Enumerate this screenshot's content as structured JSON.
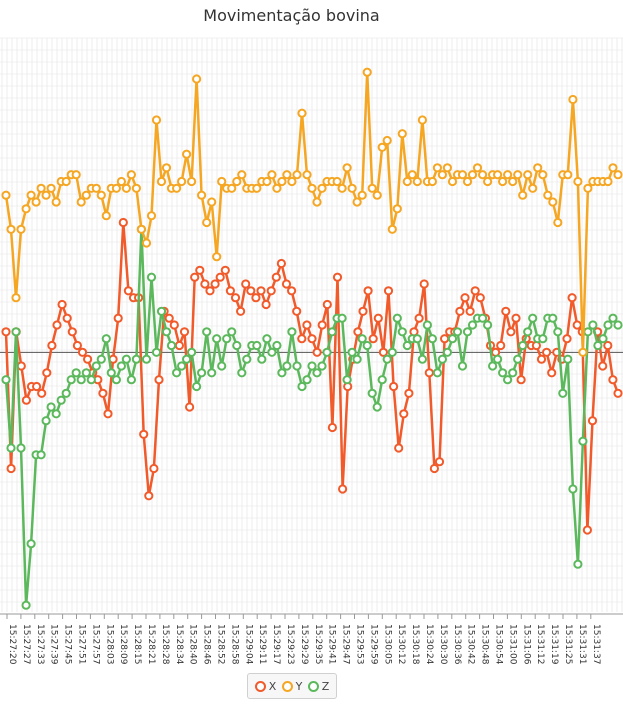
{
  "title": "Movimentação bovina",
  "colors": {
    "x": "#f15a2a",
    "y": "#f5a623",
    "z": "#5cb85c",
    "grid": "#e3e3e3",
    "zero": "#555555"
  },
  "legend": [
    {
      "name": "X",
      "color": "#f15a2a"
    },
    {
      "name": "Y",
      "color": "#f5a623"
    },
    {
      "name": "Z",
      "color": "#5cb85c"
    }
  ],
  "chart_data": {
    "type": "line",
    "title": "Movimentação bovina",
    "xlabel": "",
    "ylabel": "",
    "grid": true,
    "legend_position": "bottom",
    "ylim": [
      -3.8,
      4.6
    ],
    "x_ticks": [
      "15:27:20",
      "15:27:27",
      "15:27:33",
      "15:27:39",
      "15:27:45",
      "15:27:51",
      "15:27:57",
      "15:28:03",
      "15:28:09",
      "15:28:15",
      "15:28:21",
      "15:28:28",
      "15:28:34",
      "15:28:40",
      "15:28:46",
      "15:28:52",
      "15:28:58",
      "15:29:04",
      "15:29:11",
      "15:29:17",
      "15:29:23",
      "15:29:29",
      "15:29:35",
      "15:29:41",
      "15:29:47",
      "15:29:53",
      "15:29:59",
      "15:30:05",
      "15:30:12",
      "15:30:18",
      "15:30:24",
      "15:30:30",
      "15:30:36",
      "15:30:42",
      "15:30:48",
      "15:30:54",
      "15:31:00",
      "15:31:06",
      "15:31:12",
      "15:31:19",
      "15:31:25",
      "15:31:31",
      "15:31:37"
    ],
    "series": [
      {
        "name": "X",
        "values": [
          0.3,
          -1.7,
          0.3,
          -0.2,
          -0.7,
          -0.5,
          -0.5,
          -0.6,
          -0.3,
          0.1,
          0.4,
          0.7,
          0.5,
          0.3,
          0.1,
          0.0,
          -0.1,
          -0.3,
          -0.4,
          -0.6,
          -0.9,
          -0.1,
          0.5,
          1.9,
          0.9,
          0.8,
          0.8,
          -1.2,
          -2.1,
          -1.7,
          -0.4,
          0.6,
          0.5,
          0.4,
          0.1,
          0.3,
          -0.8,
          1.1,
          1.2,
          1.0,
          0.9,
          1.0,
          1.1,
          1.2,
          0.9,
          0.8,
          0.6,
          1.0,
          0.9,
          0.8,
          0.9,
          0.7,
          0.9,
          1.1,
          1.3,
          1.0,
          0.9,
          0.6,
          0.2,
          0.4,
          0.2,
          0.0,
          0.4,
          0.7,
          -1.1,
          1.1,
          -2.0,
          -0.5,
          -0.1,
          0.3,
          0.6,
          0.9,
          0.2,
          0.5,
          0.0,
          0.9,
          -0.5,
          -1.4,
          -0.9,
          -0.6,
          0.3,
          0.5,
          1.0,
          -0.3,
          -1.7,
          -1.6,
          0.2,
          0.3,
          0.3,
          0.6,
          0.8,
          0.6,
          0.9,
          0.8,
          0.5,
          0.1,
          0.0,
          0.1,
          0.6,
          0.3,
          0.5,
          -0.4,
          0.2,
          0.1,
          0.1,
          -0.1,
          0.0,
          -0.3,
          0.0,
          -0.1,
          0.2,
          0.8,
          0.4,
          0.3,
          -2.6,
          -1.0,
          0.3,
          -0.2,
          0.1,
          -0.4,
          -0.6
        ]
      },
      {
        "name": "Y",
        "values": [
          2.3,
          1.8,
          0.8,
          1.8,
          2.1,
          2.3,
          2.2,
          2.4,
          2.3,
          2.4,
          2.2,
          2.5,
          2.5,
          2.6,
          2.6,
          2.2,
          2.3,
          2.4,
          2.4,
          2.3,
          2.0,
          2.4,
          2.4,
          2.5,
          2.4,
          2.6,
          2.4,
          1.8,
          1.6,
          2.0,
          3.4,
          2.5,
          2.7,
          2.4,
          2.4,
          2.5,
          2.9,
          2.5,
          4.0,
          2.3,
          1.9,
          2.2,
          1.4,
          2.5,
          2.4,
          2.4,
          2.5,
          2.6,
          2.4,
          2.4,
          2.4,
          2.5,
          2.5,
          2.6,
          2.4,
          2.5,
          2.6,
          2.5,
          2.6,
          3.5,
          2.6,
          2.4,
          2.2,
          2.4,
          2.5,
          2.5,
          2.5,
          2.4,
          2.7,
          2.4,
          2.2,
          2.3,
          4.1,
          2.4,
          2.3,
          3.0,
          3.1,
          1.8,
          2.1,
          3.2,
          2.5,
          2.6,
          2.5,
          3.4,
          2.5,
          2.5,
          2.7,
          2.6,
          2.7,
          2.5,
          2.6,
          2.6,
          2.5,
          2.6,
          2.7,
          2.6,
          2.5,
          2.6,
          2.6,
          2.5,
          2.6,
          2.5,
          2.6,
          2.3,
          2.6,
          2.4,
          2.7,
          2.6,
          2.3,
          2.2,
          1.9,
          2.6,
          2.6,
          3.7,
          2.5,
          0.0,
          2.4,
          2.5,
          2.5,
          2.5,
          2.5,
          2.7,
          2.6
        ]
      },
      {
        "name": "Z",
        "values": [
          -0.4,
          -1.4,
          0.3,
          -1.4,
          -3.7,
          -2.8,
          -1.5,
          -1.5,
          -1.0,
          -0.8,
          -0.9,
          -0.7,
          -0.6,
          -0.4,
          -0.3,
          -0.4,
          -0.3,
          -0.4,
          -0.2,
          -0.1,
          0.2,
          -0.3,
          -0.4,
          -0.2,
          -0.1,
          -0.4,
          -0.1,
          1.8,
          -0.1,
          1.1,
          0.0,
          0.6,
          0.3,
          0.1,
          -0.3,
          -0.2,
          -0.1,
          0.0,
          -0.5,
          -0.3,
          0.3,
          -0.3,
          0.2,
          -0.2,
          0.2,
          0.3,
          0.1,
          -0.3,
          -0.1,
          0.1,
          0.1,
          -0.1,
          0.2,
          0.0,
          0.1,
          -0.3,
          -0.2,
          0.3,
          -0.2,
          -0.5,
          -0.4,
          -0.2,
          -0.3,
          -0.2,
          0.0,
          0.3,
          0.5,
          0.5,
          -0.4,
          0.0,
          -0.1,
          0.2,
          0.1,
          -0.6,
          -0.8,
          -0.4,
          -0.1,
          0.0,
          0.5,
          0.3,
          0.1,
          0.2,
          0.2,
          -0.1,
          0.4,
          0.2,
          -0.3,
          -0.1,
          0.0,
          0.2,
          0.3,
          -0.2,
          0.3,
          0.4,
          0.5,
          0.5,
          0.4,
          -0.2,
          -0.1,
          -0.3,
          -0.4,
          -0.3,
          -0.1,
          0.1,
          0.3,
          0.5,
          0.2,
          0.2,
          0.5,
          0.5,
          0.3,
          -0.6,
          -0.1,
          -2.0,
          -3.1,
          -1.3,
          0.3,
          0.4,
          0.1,
          0.2,
          0.4,
          0.5,
          0.4
        ]
      }
    ]
  }
}
